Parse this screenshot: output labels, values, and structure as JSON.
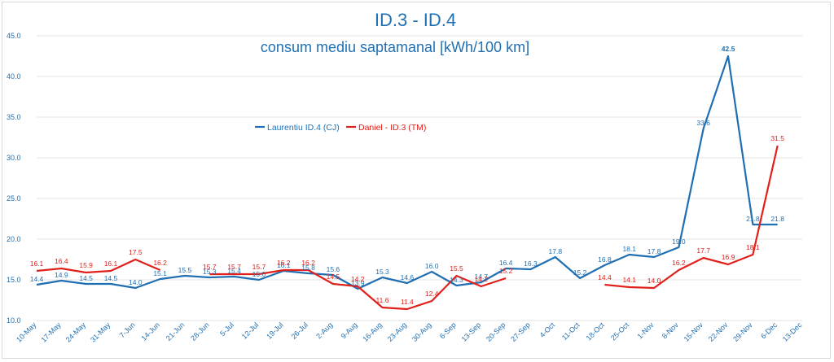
{
  "chart_data": {
    "type": "line",
    "title": "ID.3 - ID.4",
    "subtitle": "consum mediu saptamanal [kWh/100 km]",
    "xlabel": "",
    "ylabel": "",
    "ylim": [
      10.0,
      45.0
    ],
    "yticks": [
      "10.0",
      "15.0",
      "20.0",
      "25.0",
      "30.0",
      "35.0",
      "40.0",
      "45.0"
    ],
    "grid": true,
    "legend_position": "center-left",
    "categories": [
      "10-May",
      "17-May",
      "24-May",
      "31-May",
      "7-Jun",
      "14-Jun",
      "21-Jun",
      "28-Jun",
      "5-Jul",
      "12-Jul",
      "19-Jul",
      "26-Jul",
      "2-Aug",
      "9-Aug",
      "16-Aug",
      "23-Aug",
      "30-Aug",
      "6-Sep",
      "13-Sep",
      "20-Sep",
      "27-Sep",
      "4-Oct",
      "11-Oct",
      "18-Oct",
      "25-Oct",
      "1-Nov",
      "8-Nov",
      "15-Nov",
      "22-Nov",
      "29-Nov",
      "6-Dec",
      "13-Dec"
    ],
    "series": [
      {
        "name": "Laurentiu ID.4 (CJ)",
        "color": "#1f6fb2",
        "values": [
          14.4,
          14.9,
          14.5,
          14.5,
          14.0,
          15.1,
          15.5,
          15.3,
          15.4,
          15.0,
          16.1,
          15.8,
          15.6,
          13.9,
          15.3,
          14.6,
          16.0,
          14.3,
          14.7,
          16.4,
          16.3,
          17.8,
          15.2,
          16.8,
          18.1,
          17.8,
          19.0,
          33.6,
          42.5,
          21.8,
          21.8,
          null
        ],
        "labels": [
          "14.4",
          "14.9",
          "14.5",
          "14.5",
          "14.0",
          "15.1",
          "15.5",
          "15.3",
          "15.4",
          "15.0",
          "16.1",
          "15.8",
          "15.6",
          "13.9",
          "15.3",
          "14.6",
          "16.0",
          "14.3",
          "14.7",
          "16.4",
          "16.3",
          "17.8",
          "15.2",
          "16.8",
          "18.1",
          "17.8",
          "19.0",
          "33.6",
          "42.5",
          "21.8",
          "21.8",
          null
        ]
      },
      {
        "name": "Daniel - ID.3 (TM)",
        "color": "#e0201b",
        "values": [
          16.1,
          16.4,
          15.9,
          16.1,
          17.5,
          16.2,
          null,
          15.7,
          15.7,
          15.7,
          16.2,
          16.2,
          14.5,
          14.2,
          11.6,
          11.4,
          12.4,
          15.5,
          14.2,
          15.2,
          null,
          null,
          null,
          14.4,
          14.1,
          14.0,
          16.2,
          17.7,
          16.9,
          18.1,
          31.5,
          null
        ],
        "labels": [
          "16.1",
          "16.4",
          "15.9",
          "16.1",
          "17.5",
          "16.2",
          null,
          "15.7",
          "15.7",
          "15.7",
          "16.2",
          "16.2",
          "14.5",
          "14.2",
          "11.6",
          "11.4",
          "12.4",
          "15.5",
          "14.2",
          "15.2",
          null,
          null,
          null,
          "14.4",
          "14.1",
          "14.0",
          "16.2",
          "17.7",
          "16.9",
          "18.1",
          "31.5",
          null
        ]
      }
    ]
  }
}
